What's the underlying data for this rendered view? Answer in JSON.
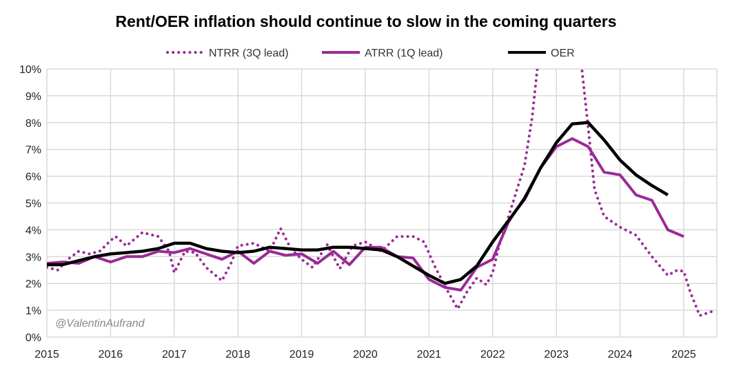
{
  "chart_data": {
    "type": "line",
    "title": "Rent/OER inflation should continue to slow in the coming quarters",
    "xlabel": "",
    "ylabel": "",
    "xlim": [
      2015,
      2025.5
    ],
    "ylim": [
      0,
      10
    ],
    "x_ticks": [
      "2015",
      "2016",
      "2017",
      "2018",
      "2019",
      "2020",
      "2021",
      "2022",
      "2023",
      "2024",
      "2025"
    ],
    "y_ticks": [
      "0%",
      "1%",
      "2%",
      "3%",
      "4%",
      "5%",
      "6%",
      "7%",
      "8%",
      "9%",
      "10%"
    ],
    "grid": true,
    "legend_position": "top",
    "watermark": "@ValentinAufrand",
    "series": [
      {
        "name": "NTRR (3Q lead)",
        "style": "dotted",
        "color": "#9B2A96",
        "x": [
          2015,
          2015.17,
          2015.33,
          2015.5,
          2015.67,
          2015.83,
          2016,
          2016.08,
          2016.25,
          2016.5,
          2016.75,
          2016.92,
          2017,
          2017.17,
          2017.33,
          2017.5,
          2017.75,
          2017.9,
          2018,
          2018.25,
          2018.5,
          2018.67,
          2018.83,
          2019,
          2019.17,
          2019.4,
          2019.6,
          2019.8,
          2020,
          2020.25,
          2020.5,
          2020.75,
          2020.92,
          2021.1,
          2021.25,
          2021.45,
          2021.6,
          2021.75,
          2021.9,
          2022,
          2022.1,
          2022.25,
          2022.5,
          2022.62,
          2022.7,
          2022.75,
          2023.35,
          2023.4,
          2023.5,
          2023.6,
          2023.75,
          2024,
          2024.25,
          2024.5,
          2024.75,
          2024.9,
          2025,
          2025.1,
          2025.25,
          2025.5
        ],
        "y": [
          2.6,
          2.5,
          2.9,
          3.2,
          3.1,
          3.2,
          3.6,
          3.75,
          3.4,
          3.9,
          3.75,
          3.2,
          2.4,
          3.2,
          3.15,
          2.6,
          2.1,
          2.8,
          3.4,
          3.5,
          3.2,
          4.05,
          3.3,
          2.9,
          2.6,
          3.45,
          2.55,
          3.4,
          3.55,
          3.2,
          3.75,
          3.75,
          3.55,
          2.6,
          1.9,
          1.05,
          1.7,
          2.2,
          1.95,
          2.4,
          3.4,
          4.5,
          6.4,
          8.2,
          10.0,
          11.0,
          11.0,
          10.0,
          7.8,
          5.5,
          4.5,
          4.1,
          3.8,
          3.0,
          2.3,
          2.5,
          2.45,
          1.7,
          0.8,
          1.0
        ]
      },
      {
        "name": "ATRR (1Q lead)",
        "style": "solid",
        "color": "#9B2A96",
        "x": [
          2015,
          2015.25,
          2015.5,
          2015.75,
          2016,
          2016.25,
          2016.5,
          2016.75,
          2017,
          2017.25,
          2017.5,
          2017.75,
          2018,
          2018.25,
          2018.5,
          2018.75,
          2019,
          2019.25,
          2019.5,
          2019.75,
          2020,
          2020.25,
          2020.5,
          2020.75,
          2021,
          2021.25,
          2021.5,
          2021.75,
          2022,
          2022.25,
          2022.5,
          2022.75,
          2023,
          2023.25,
          2023.5,
          2023.75,
          2024,
          2024.25,
          2024.5,
          2024.75,
          2025
        ],
        "y": [
          2.75,
          2.8,
          2.75,
          3.0,
          2.8,
          3.0,
          3.0,
          3.2,
          3.15,
          3.3,
          3.1,
          2.9,
          3.2,
          2.75,
          3.2,
          3.05,
          3.1,
          2.75,
          3.2,
          2.7,
          3.35,
          3.35,
          3.0,
          2.95,
          2.15,
          1.85,
          1.75,
          2.6,
          2.9,
          4.3,
          5.2,
          6.3,
          7.1,
          7.4,
          7.1,
          6.15,
          6.05,
          5.3,
          5.1,
          4.0,
          3.75
        ]
      },
      {
        "name": "OER",
        "style": "solid",
        "color": "#000000",
        "x": [
          2015,
          2015.25,
          2015.5,
          2015.75,
          2016,
          2016.25,
          2016.5,
          2016.75,
          2017,
          2017.25,
          2017.5,
          2017.75,
          2018,
          2018.25,
          2018.5,
          2018.75,
          2019,
          2019.25,
          2019.5,
          2019.75,
          2020,
          2020.25,
          2020.5,
          2020.75,
          2021,
          2021.25,
          2021.5,
          2021.75,
          2022,
          2022.25,
          2022.5,
          2022.75,
          2023,
          2023.25,
          2023.5,
          2023.75,
          2024,
          2024.25,
          2024.5,
          2024.75
        ],
        "y": [
          2.7,
          2.7,
          2.85,
          3.0,
          3.1,
          3.15,
          3.2,
          3.3,
          3.5,
          3.5,
          3.3,
          3.2,
          3.15,
          3.2,
          3.35,
          3.3,
          3.25,
          3.25,
          3.35,
          3.35,
          3.3,
          3.25,
          3.0,
          2.65,
          2.3,
          2.0,
          2.15,
          2.65,
          3.55,
          4.35,
          5.15,
          6.3,
          7.25,
          7.95,
          8.0,
          7.35,
          6.6,
          6.05,
          5.65,
          5.3
        ]
      }
    ]
  }
}
